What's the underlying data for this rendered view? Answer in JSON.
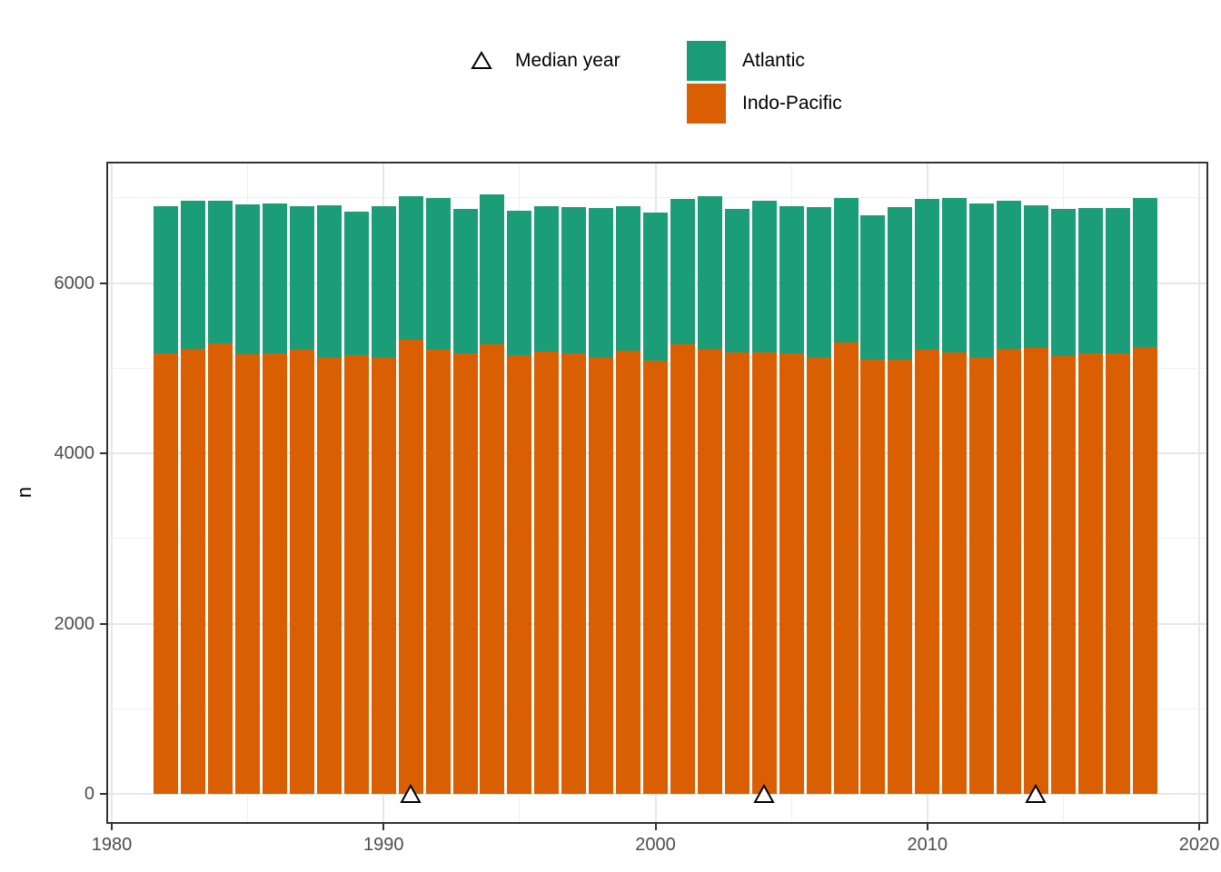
{
  "figure": {
    "y_axis_title": "n"
  },
  "legend": {
    "median_label": "Median year",
    "series": [
      {
        "label": "Atlantic",
        "color": "#1B9E77"
      },
      {
        "label": "Indo-Pacific",
        "color": "#D95F02"
      }
    ],
    "marker": {
      "shape": "open-triangle",
      "fill": "#FFFFFF",
      "stroke": "#000000"
    }
  },
  "chart_data": {
    "type": "bar",
    "stacked": true,
    "orientation": "vertical",
    "title": "",
    "xlabel": "",
    "ylabel": "n",
    "legend_position": "top",
    "grid": true,
    "background": "#FFFFFF",
    "gridline_color": "#EBEBEB",
    "panel_border_color": "#333333",
    "tick_label_color": "#4D4D4D",
    "x": [
      1982,
      1983,
      1984,
      1985,
      1986,
      1987,
      1988,
      1989,
      1990,
      1991,
      1992,
      1993,
      1994,
      1995,
      1996,
      1997,
      1998,
      1999,
      2000,
      2001,
      2002,
      2003,
      2004,
      2005,
      2006,
      2007,
      2008,
      2009,
      2010,
      2011,
      2012,
      2013,
      2014,
      2015,
      2016,
      2017,
      2018
    ],
    "series": [
      {
        "name": "Indo-Pacific",
        "color": "#D95F02",
        "values": [
          5170,
          5230,
          5290,
          5165,
          5175,
          5215,
          5125,
          5155,
          5125,
          5335,
          5215,
          5170,
          5280,
          5155,
          5195,
          5180,
          5135,
          5205,
          5095,
          5285,
          5225,
          5185,
          5185,
          5180,
          5130,
          5305,
          5100,
          5105,
          5215,
          5185,
          5120,
          5225,
          5235,
          5145,
          5180,
          5170,
          5250
        ]
      },
      {
        "name": "Atlantic",
        "color": "#1B9E77",
        "values": [
          1730,
          1735,
          1675,
          1765,
          1760,
          1685,
          1790,
          1690,
          1775,
          1690,
          1785,
          1700,
          1765,
          1695,
          1705,
          1715,
          1745,
          1700,
          1730,
          1705,
          1800,
          1685,
          1780,
          1725,
          1760,
          1700,
          1695,
          1790,
          1770,
          1820,
          1815,
          1745,
          1680,
          1725,
          1705,
          1715,
          1755
        ]
      }
    ],
    "median_year_markers": {
      "label": "Median year",
      "years": [
        1991,
        2004,
        2014
      ],
      "y_value": 0
    },
    "axes": {
      "x": {
        "tick_labels": [
          "1980",
          "1990",
          "2000",
          "2010",
          "2020"
        ],
        "ticks": [
          1980,
          1990,
          2000,
          2010,
          2020
        ],
        "minor_ticks": [
          1985,
          1995,
          2005,
          2015
        ],
        "range": [
          1979.8,
          2020.4
        ]
      },
      "y": {
        "tick_labels": [
          "0",
          "2000",
          "4000",
          "6000"
        ],
        "ticks": [
          0,
          2000,
          4000,
          6000
        ],
        "minor_ticks": [
          1000,
          3000,
          5000,
          7000
        ],
        "range": [
          -350,
          7430
        ]
      }
    }
  }
}
